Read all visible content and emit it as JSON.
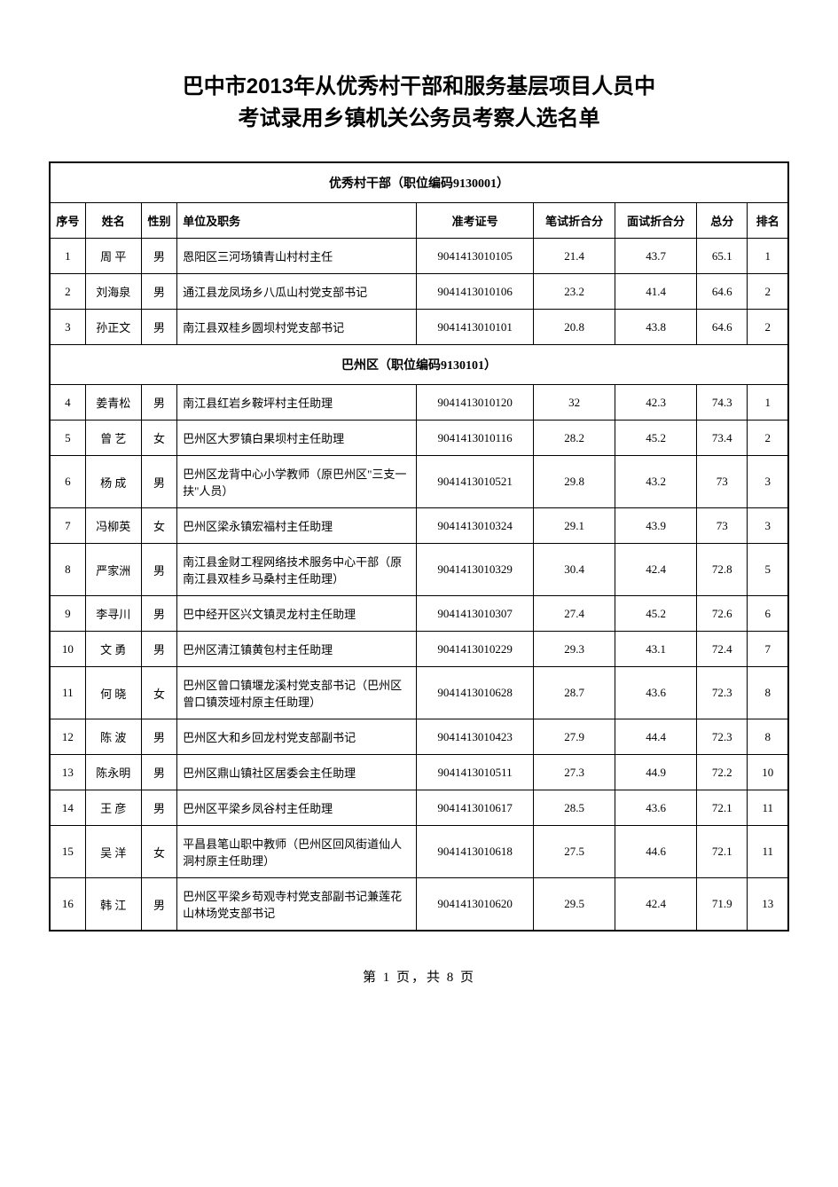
{
  "title": {
    "line1": "巴中市2013年从优秀村干部和服务基层项目人员中",
    "line2": "考试录用乡镇机关公务员考察人选名单"
  },
  "columns": {
    "seq": "序号",
    "name": "姓名",
    "gender": "性别",
    "position": "单位及职务",
    "examno": "准考证号",
    "written": "笔试折合分",
    "interview": "面试折合分",
    "total": "总分",
    "rank": "排名"
  },
  "sections": [
    {
      "header": "优秀村干部（职位编码9130001）",
      "rows": [
        {
          "seq": "1",
          "name": "周 平",
          "gender": "男",
          "position": "恩阳区三河场镇青山村村主任",
          "examno": "9041413010105",
          "written": "21.4",
          "interview": "43.7",
          "total": "65.1",
          "rank": "1"
        },
        {
          "seq": "2",
          "name": "刘海泉",
          "gender": "男",
          "position": "通江县龙凤场乡八瓜山村党支部书记",
          "examno": "9041413010106",
          "written": "23.2",
          "interview": "41.4",
          "total": "64.6",
          "rank": "2"
        },
        {
          "seq": "3",
          "name": "孙正文",
          "gender": "男",
          "position": "南江县双桂乡圆坝村党支部书记",
          "examno": "9041413010101",
          "written": "20.8",
          "interview": "43.8",
          "total": "64.6",
          "rank": "2"
        }
      ]
    },
    {
      "header": "巴州区（职位编码9130101）",
      "rows": [
        {
          "seq": "4",
          "name": "姜青松",
          "gender": "男",
          "position": "南江县红岩乡鞍坪村主任助理",
          "examno": "9041413010120",
          "written": "32",
          "interview": "42.3",
          "total": "74.3",
          "rank": "1"
        },
        {
          "seq": "5",
          "name": "曾 艺",
          "gender": "女",
          "position": "巴州区大罗镇白果坝村主任助理",
          "examno": "9041413010116",
          "written": "28.2",
          "interview": "45.2",
          "total": "73.4",
          "rank": "2"
        },
        {
          "seq": "6",
          "name": "杨 成",
          "gender": "男",
          "position": "巴州区龙背中心小学教师（原巴州区\"三支一扶\"人员）",
          "examno": "9041413010521",
          "written": "29.8",
          "interview": "43.2",
          "total": "73",
          "rank": "3"
        },
        {
          "seq": "7",
          "name": "冯柳英",
          "gender": "女",
          "position": "巴州区梁永镇宏福村主任助理",
          "examno": "9041413010324",
          "written": "29.1",
          "interview": "43.9",
          "total": "73",
          "rank": "3"
        },
        {
          "seq": "8",
          "name": "严家洲",
          "gender": "男",
          "position": "南江县金财工程网络技术服务中心干部（原南江县双桂乡马桑村主任助理）",
          "examno": "9041413010329",
          "written": "30.4",
          "interview": "42.4",
          "total": "72.8",
          "rank": "5"
        },
        {
          "seq": "9",
          "name": "李寻川",
          "gender": "男",
          "position": "巴中经开区兴文镇灵龙村主任助理",
          "examno": "9041413010307",
          "written": "27.4",
          "interview": "45.2",
          "total": "72.6",
          "rank": "6"
        },
        {
          "seq": "10",
          "name": "文 勇",
          "gender": "男",
          "position": "巴州区清江镇黄包村主任助理",
          "examno": "9041413010229",
          "written": "29.3",
          "interview": "43.1",
          "total": "72.4",
          "rank": "7"
        },
        {
          "seq": "11",
          "name": "何 晓",
          "gender": "女",
          "position": "巴州区曾口镇堰龙溪村党支部书记（巴州区曾口镇茨垭村原主任助理）",
          "examno": "9041413010628",
          "written": "28.7",
          "interview": "43.6",
          "total": "72.3",
          "rank": "8"
        },
        {
          "seq": "12",
          "name": "陈 波",
          "gender": "男",
          "position": "巴州区大和乡回龙村党支部副书记",
          "examno": "9041413010423",
          "written": "27.9",
          "interview": "44.4",
          "total": "72.3",
          "rank": "8"
        },
        {
          "seq": "13",
          "name": "陈永明",
          "gender": "男",
          "position": "巴州区鼎山镇社区居委会主任助理",
          "examno": "9041413010511",
          "written": "27.3",
          "interview": "44.9",
          "total": "72.2",
          "rank": "10"
        },
        {
          "seq": "14",
          "name": "王 彦",
          "gender": "男",
          "position": "巴州区平梁乡凤谷村主任助理",
          "examno": "9041413010617",
          "written": "28.5",
          "interview": "43.6",
          "total": "72.1",
          "rank": "11"
        },
        {
          "seq": "15",
          "name": "吴 洋",
          "gender": "女",
          "position": "平昌县笔山职中教师（巴州区回风街道仙人洞村原主任助理）",
          "examno": "9041413010618",
          "written": "27.5",
          "interview": "44.6",
          "total": "72.1",
          "rank": "11"
        },
        {
          "seq": "16",
          "name": "韩 江",
          "gender": "男",
          "position": "巴州区平梁乡苟观寺村党支部副书记兼莲花山林场党支部书记",
          "examno": "9041413010620",
          "written": "29.5",
          "interview": "42.4",
          "total": "71.9",
          "rank": "13"
        }
      ]
    }
  ],
  "footer": {
    "page_current": "1",
    "page_total": "8",
    "prefix": "第",
    "mid": "页，共",
    "suffix": "页"
  },
  "style": {
    "background_color": "#ffffff",
    "border_color": "#000000",
    "text_color": "#000000",
    "title_fontsize": 24,
    "body_fontsize": 13,
    "footer_fontsize": 15
  }
}
